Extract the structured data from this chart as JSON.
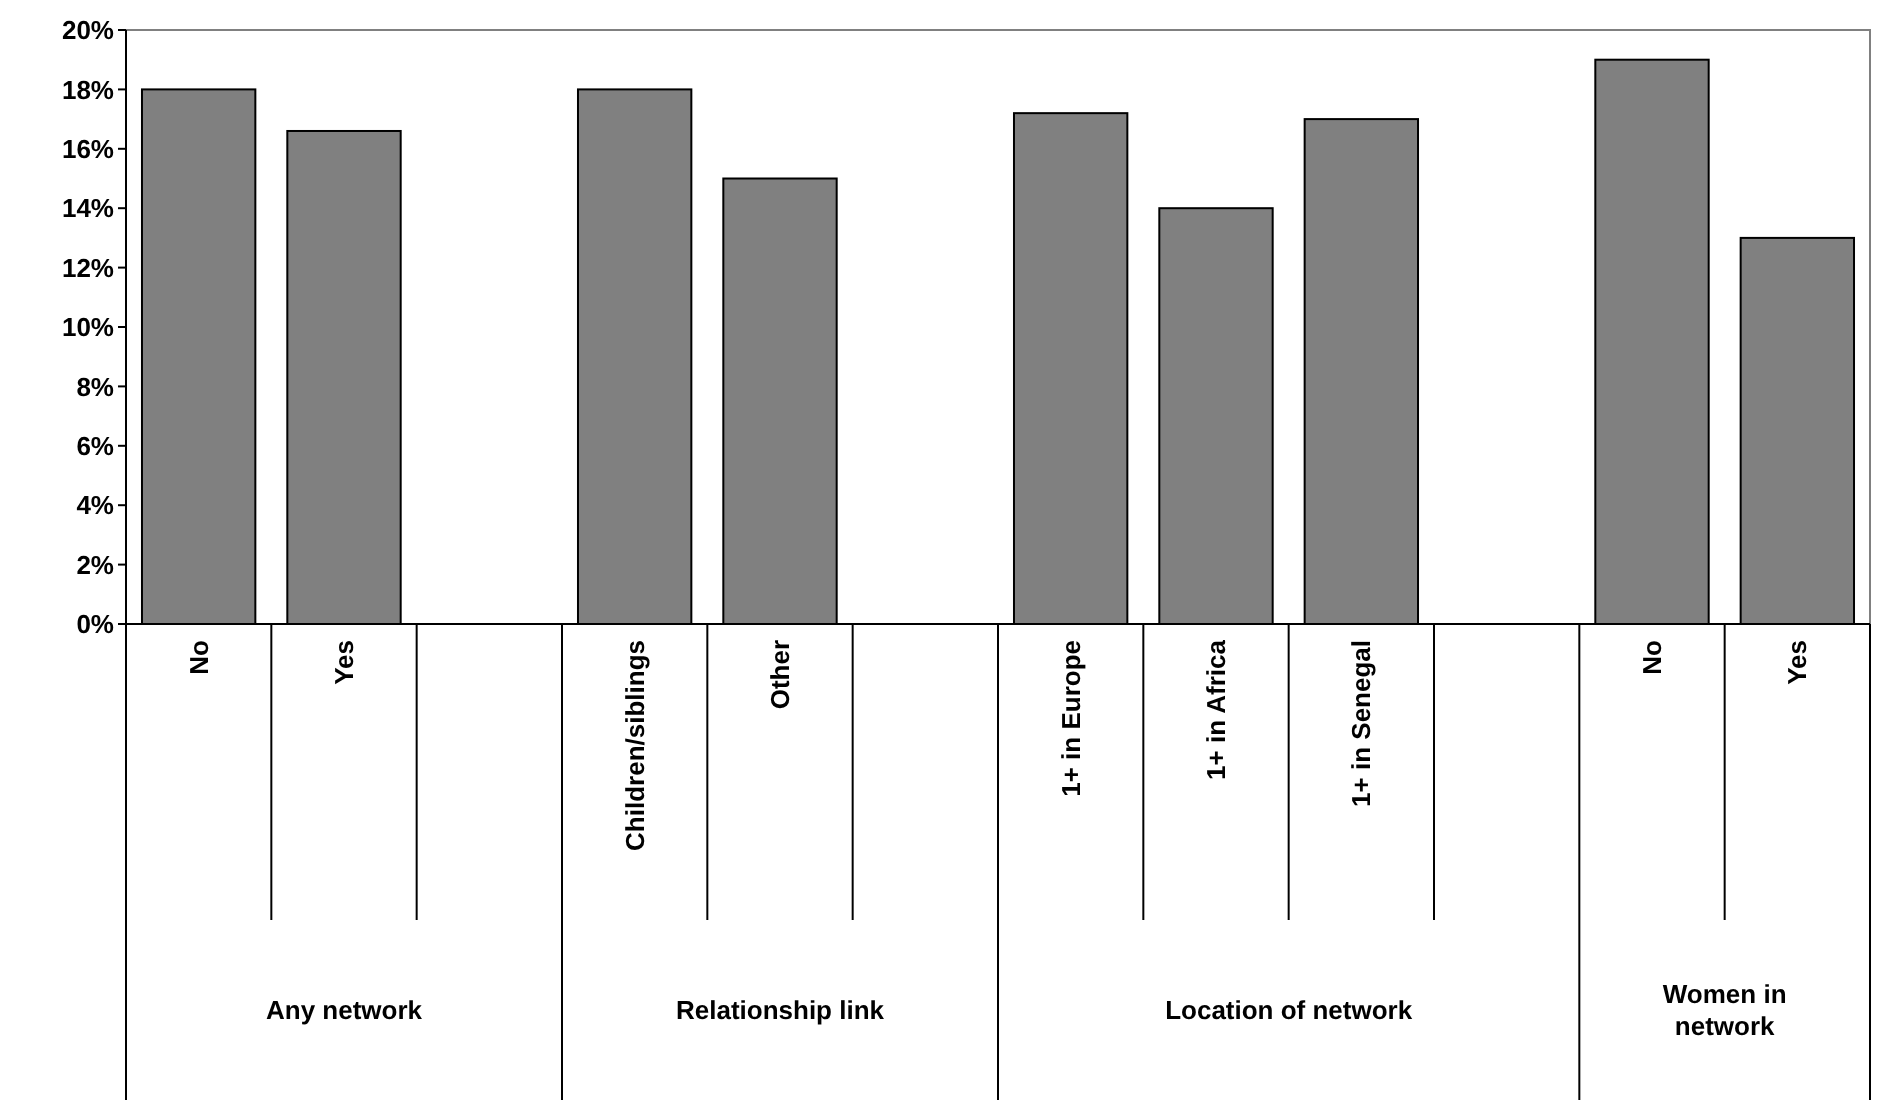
{
  "chart_data": {
    "type": "bar",
    "categories": [
      "No",
      "Yes",
      null,
      "Children/siblings",
      "Other",
      null,
      "1+ in Europe",
      "1+ in Africa",
      "1+ in Senegal",
      null,
      "No",
      "Yes"
    ],
    "values": [
      18,
      16.6,
      null,
      18,
      15,
      null,
      17.2,
      14,
      17,
      null,
      19,
      13
    ],
    "color": "#808080",
    "ylim": [
      0,
      20
    ],
    "yticks": [
      {
        "value": 0,
        "label": "0%"
      },
      {
        "value": 2,
        "label": "2%"
      },
      {
        "value": 4,
        "label": "4%"
      },
      {
        "value": 6,
        "label": "6%"
      },
      {
        "value": 8,
        "label": "8%"
      },
      {
        "value": 10,
        "label": "10%"
      },
      {
        "value": 12,
        "label": "12%"
      },
      {
        "value": 14,
        "label": "14%"
      },
      {
        "value": 16,
        "label": "16%"
      },
      {
        "value": 18,
        "label": "18%"
      },
      {
        "value": 20,
        "label": "20%"
      }
    ],
    "annotations": [
      "Any network",
      "Relationship link",
      "Location of network",
      "Women in network"
    ]
  }
}
